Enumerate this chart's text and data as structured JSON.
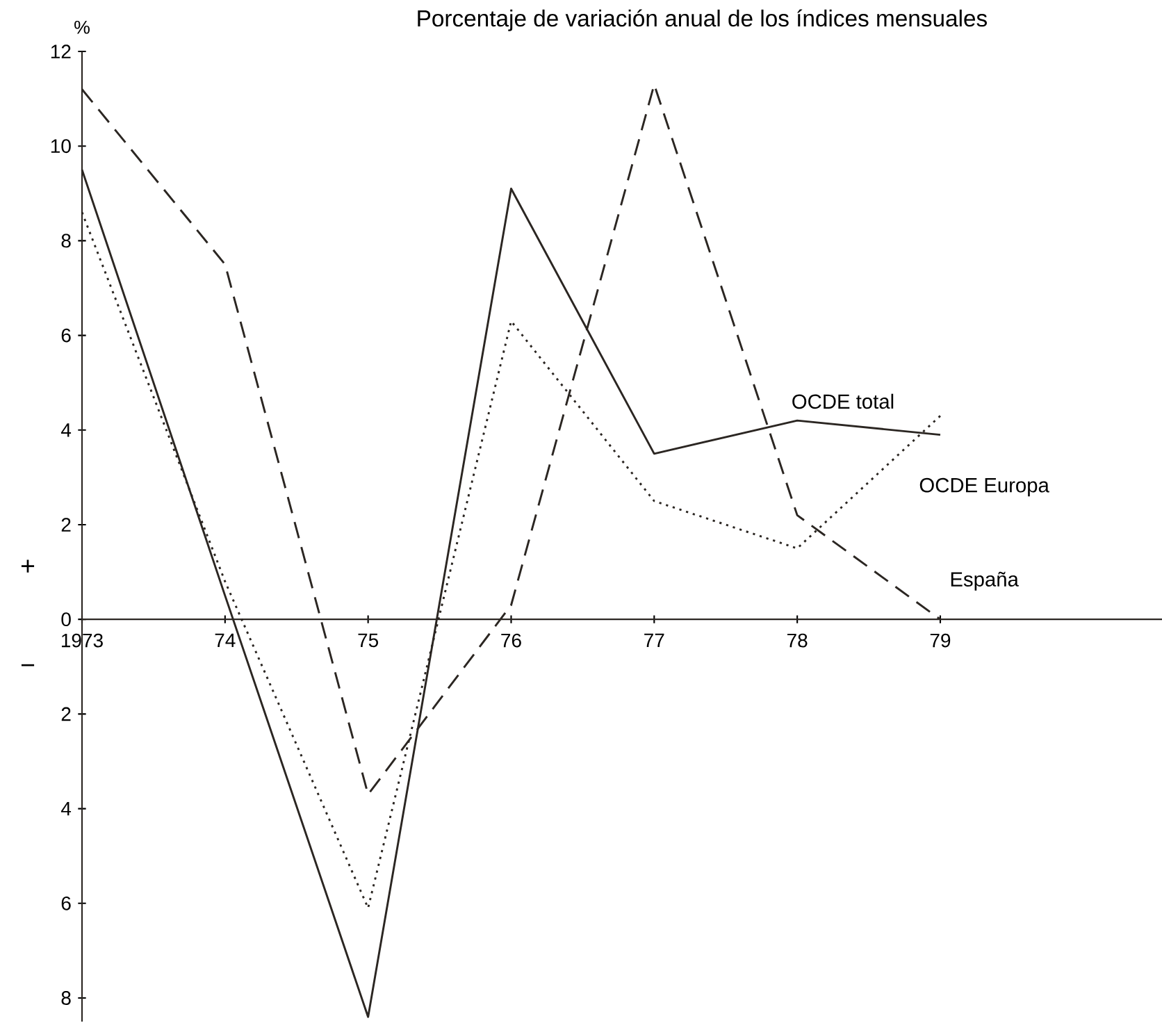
{
  "chart_data": {
    "type": "line",
    "title": "Porcentaje de variación anual de los índices mensuales",
    "ylabel": "%",
    "x": [
      1973,
      1974,
      1975,
      1976,
      1977,
      1978,
      1979
    ],
    "series": [
      {
        "name": "OCDE total",
        "color": "#2b2622",
        "line_style": "solid",
        "values": [
          9.5,
          0.5,
          -8.4,
          9.1,
          3.5,
          4.2,
          3.9
        ]
      },
      {
        "name": "OCDE Europa",
        "color": "#2b2622",
        "line_style": "dotted",
        "values": [
          8.6,
          0.8,
          -6.1,
          6.3,
          2.5,
          1.5,
          4.3
        ]
      },
      {
        "name": "España",
        "color": "#2b2622",
        "line_style": "dashed",
        "values": [
          11.2,
          7.5,
          -3.7,
          0.3,
          11.3,
          2.2,
          0
        ]
      }
    ],
    "xlim": [
      1973,
      1980.55
    ],
    "ylim": [
      -8.5,
      12
    ],
    "xticks": [
      1973,
      {
        "value": 1974,
        "label": "74"
      },
      {
        "value": 1975,
        "label": "75"
      },
      {
        "value": 1976,
        "label": "76"
      },
      {
        "value": 1977,
        "label": "77"
      },
      {
        "value": 1978,
        "label": "78"
      },
      {
        "value": 1979,
        "label": "79"
      }
    ],
    "yticks": [
      {
        "value": -8,
        "label": "8"
      },
      {
        "value": -6,
        "label": "6"
      },
      {
        "value": -4,
        "label": "4"
      },
      {
        "value": -2,
        "label": "2"
      },
      0,
      2,
      4,
      6,
      8,
      10,
      12
    ],
    "annotations": [
      "+",
      "−"
    ],
    "marker": "none",
    "grid": false,
    "legend": false
  }
}
